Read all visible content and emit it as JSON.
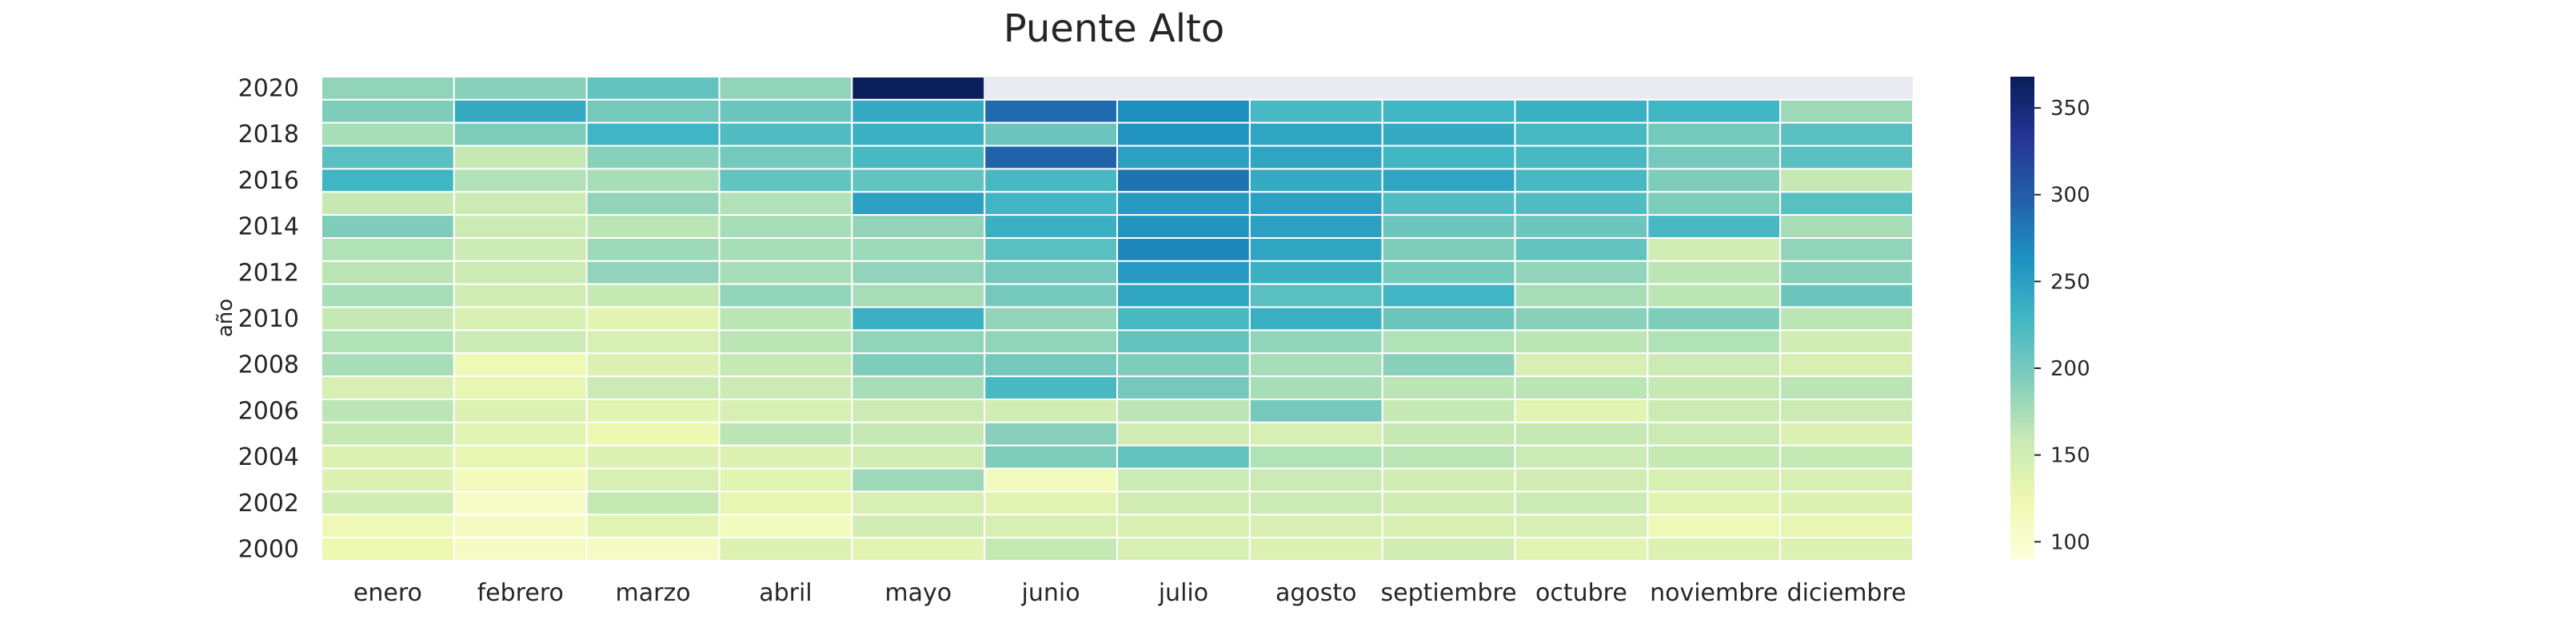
{
  "chart_data": {
    "type": "heatmap",
    "title": "Puente Alto",
    "xlabel": "",
    "ylabel": "año",
    "columns": [
      "enero",
      "febrero",
      "marzo",
      "abril",
      "mayo",
      "junio",
      "julio",
      "agosto",
      "septiembre",
      "octubre",
      "noviembre",
      "diciembre"
    ],
    "rows": [
      "2020",
      "2019",
      "2018",
      "2017",
      "2016",
      "2015",
      "2014",
      "2013",
      "2012",
      "2011",
      "2010",
      "2009",
      "2008",
      "2007",
      "2006",
      "2005",
      "2004",
      "2003",
      "2002",
      "2001",
      "2000"
    ],
    "y_tick_labels": [
      "2020",
      "2018",
      "2016",
      "2014",
      "2012",
      "2010",
      "2008",
      "2006",
      "2004",
      "2002",
      "2000"
    ],
    "values": [
      [
        185,
        190,
        210,
        185,
        365,
        null,
        null,
        null,
        null,
        null,
        null,
        null
      ],
      [
        195,
        240,
        200,
        205,
        240,
        290,
        265,
        225,
        230,
        235,
        230,
        180
      ],
      [
        175,
        195,
        230,
        220,
        235,
        205,
        260,
        245,
        240,
        225,
        200,
        215
      ],
      [
        215,
        160,
        190,
        200,
        225,
        295,
        250,
        245,
        230,
        225,
        200,
        215
      ],
      [
        230,
        170,
        175,
        210,
        210,
        225,
        285,
        240,
        245,
        225,
        195,
        160
      ],
      [
        160,
        155,
        185,
        170,
        250,
        230,
        255,
        250,
        220,
        220,
        195,
        215
      ],
      [
        195,
        155,
        165,
        175,
        185,
        235,
        260,
        250,
        205,
        205,
        225,
        175
      ],
      [
        170,
        155,
        180,
        175,
        180,
        215,
        270,
        245,
        195,
        210,
        150,
        185
      ],
      [
        165,
        155,
        185,
        175,
        185,
        200,
        255,
        235,
        200,
        185,
        165,
        190
      ],
      [
        175,
        150,
        160,
        185,
        175,
        200,
        245,
        215,
        230,
        175,
        165,
        205
      ],
      [
        160,
        145,
        135,
        165,
        235,
        185,
        225,
        235,
        205,
        190,
        195,
        165
      ],
      [
        170,
        155,
        145,
        165,
        185,
        185,
        210,
        185,
        170,
        165,
        170,
        150
      ],
      [
        175,
        120,
        140,
        160,
        195,
        200,
        195,
        175,
        190,
        145,
        155,
        145
      ],
      [
        145,
        130,
        155,
        155,
        175,
        225,
        200,
        175,
        165,
        165,
        160,
        165
      ],
      [
        165,
        140,
        135,
        145,
        155,
        150,
        165,
        200,
        160,
        135,
        155,
        155
      ],
      [
        160,
        135,
        125,
        165,
        160,
        190,
        150,
        145,
        160,
        160,
        155,
        140
      ],
      [
        140,
        130,
        140,
        140,
        150,
        195,
        210,
        170,
        165,
        155,
        160,
        160
      ],
      [
        140,
        115,
        145,
        135,
        180,
        115,
        155,
        155,
        150,
        150,
        145,
        145
      ],
      [
        150,
        105,
        160,
        130,
        145,
        135,
        150,
        155,
        150,
        155,
        135,
        140
      ],
      [
        120,
        110,
        135,
        115,
        150,
        145,
        145,
        145,
        145,
        145,
        120,
        130
      ],
      [
        125,
        110,
        110,
        140,
        135,
        160,
        145,
        140,
        150,
        135,
        140,
        140
      ]
    ],
    "colorbar": {
      "min": 90,
      "max": 368,
      "ticks": [
        100,
        150,
        200,
        250,
        300,
        350
      ],
      "tick_labels": [
        "100",
        "150",
        "200",
        "250",
        "300",
        "350"
      ]
    },
    "missing_color": "#eaeaf2",
    "colormap": "YlGnBu",
    "grid": false
  }
}
